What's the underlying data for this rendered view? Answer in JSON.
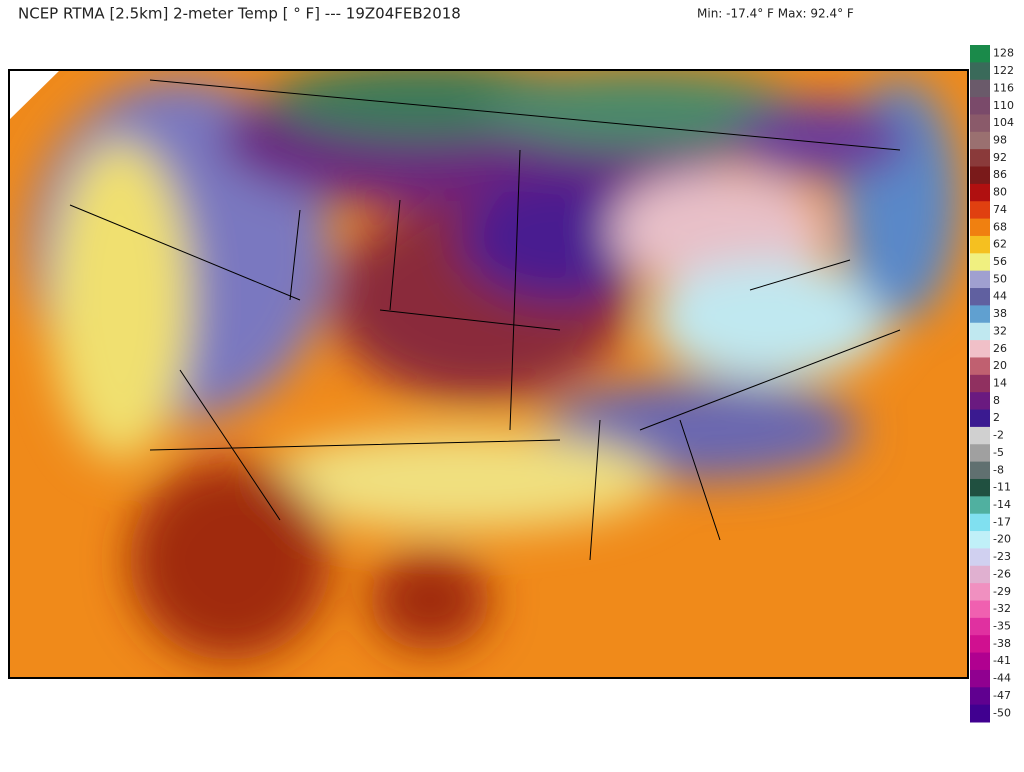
{
  "header": {
    "title": "NCEP RTMA [2.5km] 2-meter Temp [ ° F]  --- 19Z04FEB2018",
    "range": "Min: -17.4° F Max: 92.4° F"
  },
  "colorbar": {
    "ticks": [
      128,
      122,
      116,
      110,
      104,
      98,
      92,
      86,
      80,
      74,
      68,
      62,
      56,
      50,
      44,
      38,
      32,
      26,
      20,
      14,
      8,
      2,
      -2,
      -5,
      -8,
      -11,
      -14,
      -17,
      -20,
      -23,
      -26,
      -29,
      -32,
      -35,
      -38,
      -41,
      -44,
      -47,
      -50
    ],
    "colors": [
      "#1a8a4a",
      "#3a6a5a",
      "#6a5a6a",
      "#7a4a6a",
      "#8a5a6a",
      "#9a7070",
      "#8a3a3a",
      "#7a1a1a",
      "#b01010",
      "#e04010",
      "#f08010",
      "#f5c020",
      "#f0f080",
      "#a0a0d0",
      "#6060a0",
      "#60a0d0",
      "#c0e8f0",
      "#f0c0c8",
      "#c06070",
      "#903060",
      "#6a1a80",
      "#3a1a90",
      "#d0d0d0",
      "#a0a0a0",
      "#607070",
      "#205040",
      "#50b0a0",
      "#80e0f0",
      "#c0f0f8",
      "#d0d0f0",
      "#e0b0d0",
      "#f090c0",
      "#f060b0",
      "#e030a0",
      "#d01090",
      "#b00090",
      "#900090",
      "#600090",
      "#400090"
    ]
  }
}
